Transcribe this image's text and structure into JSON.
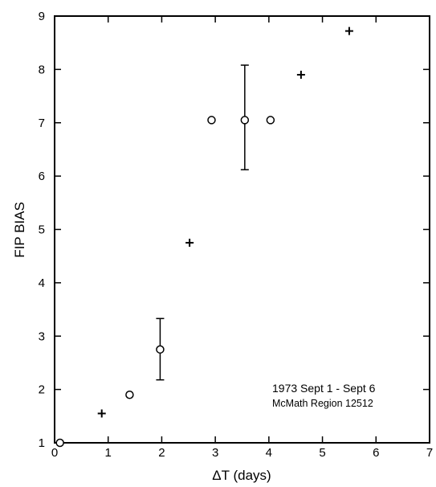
{
  "chart_data": {
    "type": "scatter",
    "xlabel": "ΔT (days)",
    "ylabel": "FIP BIAS",
    "xlim": [
      0,
      7
    ],
    "ylim": [
      1,
      9
    ],
    "xticks": [
      0,
      1,
      2,
      3,
      4,
      5,
      6,
      7
    ],
    "yticks": [
      1,
      2,
      3,
      4,
      5,
      6,
      7,
      8,
      9
    ],
    "xtick_labels": [
      "0",
      "1",
      "2",
      "3",
      "4",
      "5",
      "6",
      "7"
    ],
    "ytick_labels": [
      "1",
      "2",
      "3",
      "4",
      "5",
      "6",
      "7",
      "8",
      "9"
    ],
    "grid": false,
    "annotations": [
      "1973 Sept 1 - Sept 6",
      "McMath Region 12512"
    ],
    "series": [
      {
        "marker": "circle",
        "points": [
          {
            "x": 0.1,
            "y": 1.0
          },
          {
            "x": 1.4,
            "y": 1.9
          },
          {
            "x": 1.97,
            "y": 2.75,
            "err_low": 2.18,
            "err_high": 3.33
          },
          {
            "x": 2.93,
            "y": 7.05
          },
          {
            "x": 3.55,
            "y": 7.05,
            "err_low": 6.12,
            "err_high": 8.08
          },
          {
            "x": 4.03,
            "y": 7.05
          }
        ]
      },
      {
        "marker": "plus",
        "points": [
          {
            "x": 0.88,
            "y": 1.55
          },
          {
            "x": 2.52,
            "y": 4.75
          },
          {
            "x": 4.6,
            "y": 7.9
          },
          {
            "x": 5.5,
            "y": 8.72
          }
        ]
      }
    ]
  }
}
